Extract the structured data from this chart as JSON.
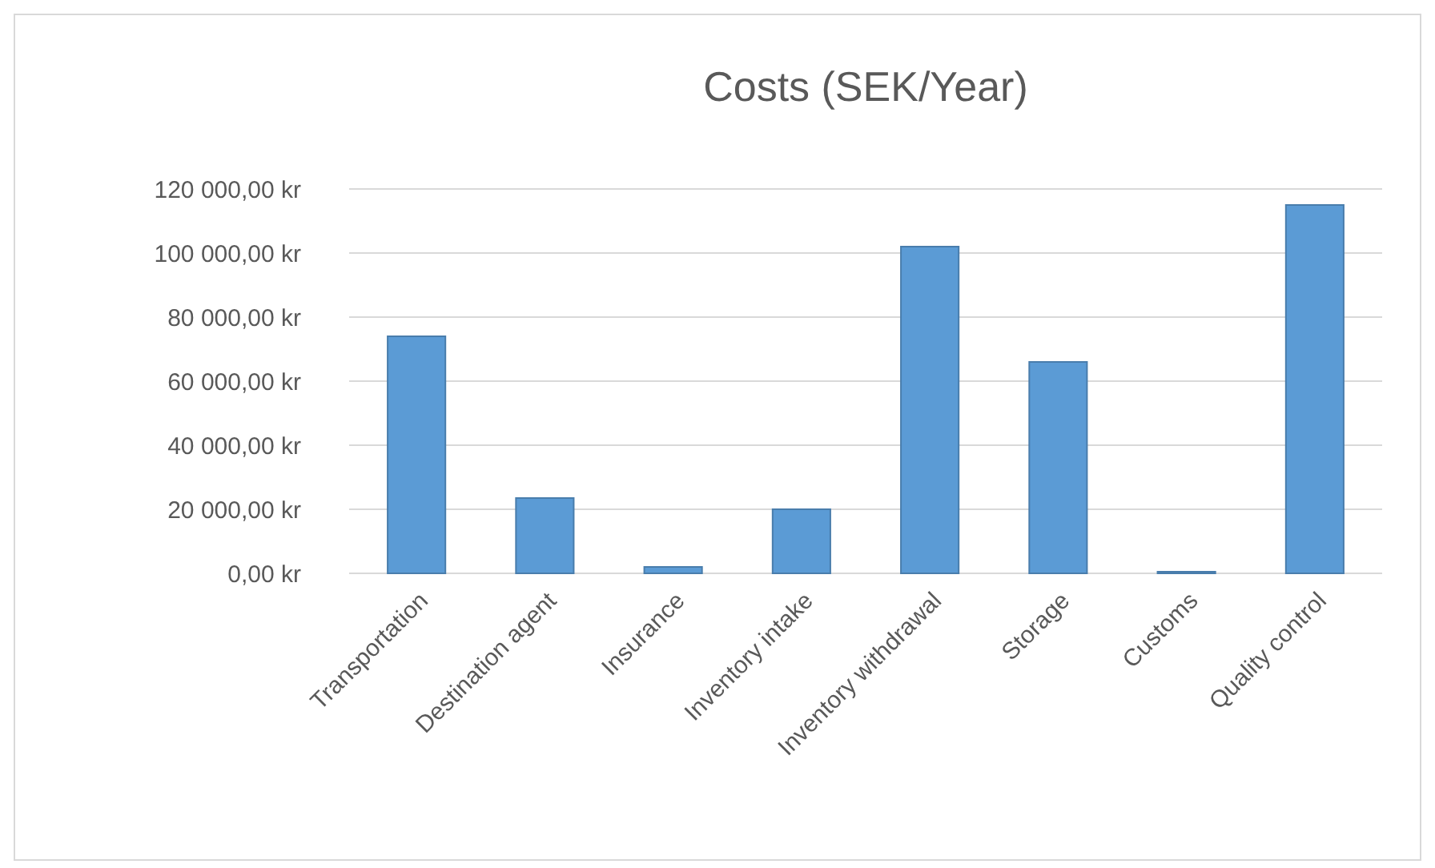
{
  "chart_data": {
    "type": "bar",
    "title": "Costs (SEK/Year)",
    "categories": [
      "Transportation",
      "Destination agent",
      "Insurance",
      "Inventory intake",
      "Inventory withdrawal",
      "Storage",
      "Customs",
      "Quality control"
    ],
    "values": [
      74000,
      23500,
      2000,
      20000,
      102000,
      66000,
      500,
      115000
    ],
    "color": "#5b9bd5",
    "ylim": [
      0,
      120000
    ],
    "yticks": [
      {
        "value": 0,
        "label": "0,00 kr"
      },
      {
        "value": 20000,
        "label": "20 000,00 kr"
      },
      {
        "value": 40000,
        "label": "40 000,00 kr"
      },
      {
        "value": 60000,
        "label": "60 000,00 kr"
      },
      {
        "value": 80000,
        "label": "80 000,00 kr"
      },
      {
        "value": 100000,
        "label": "100 000,00 kr"
      },
      {
        "value": 120000,
        "label": "120 000,00 kr"
      }
    ],
    "grid": "y"
  }
}
